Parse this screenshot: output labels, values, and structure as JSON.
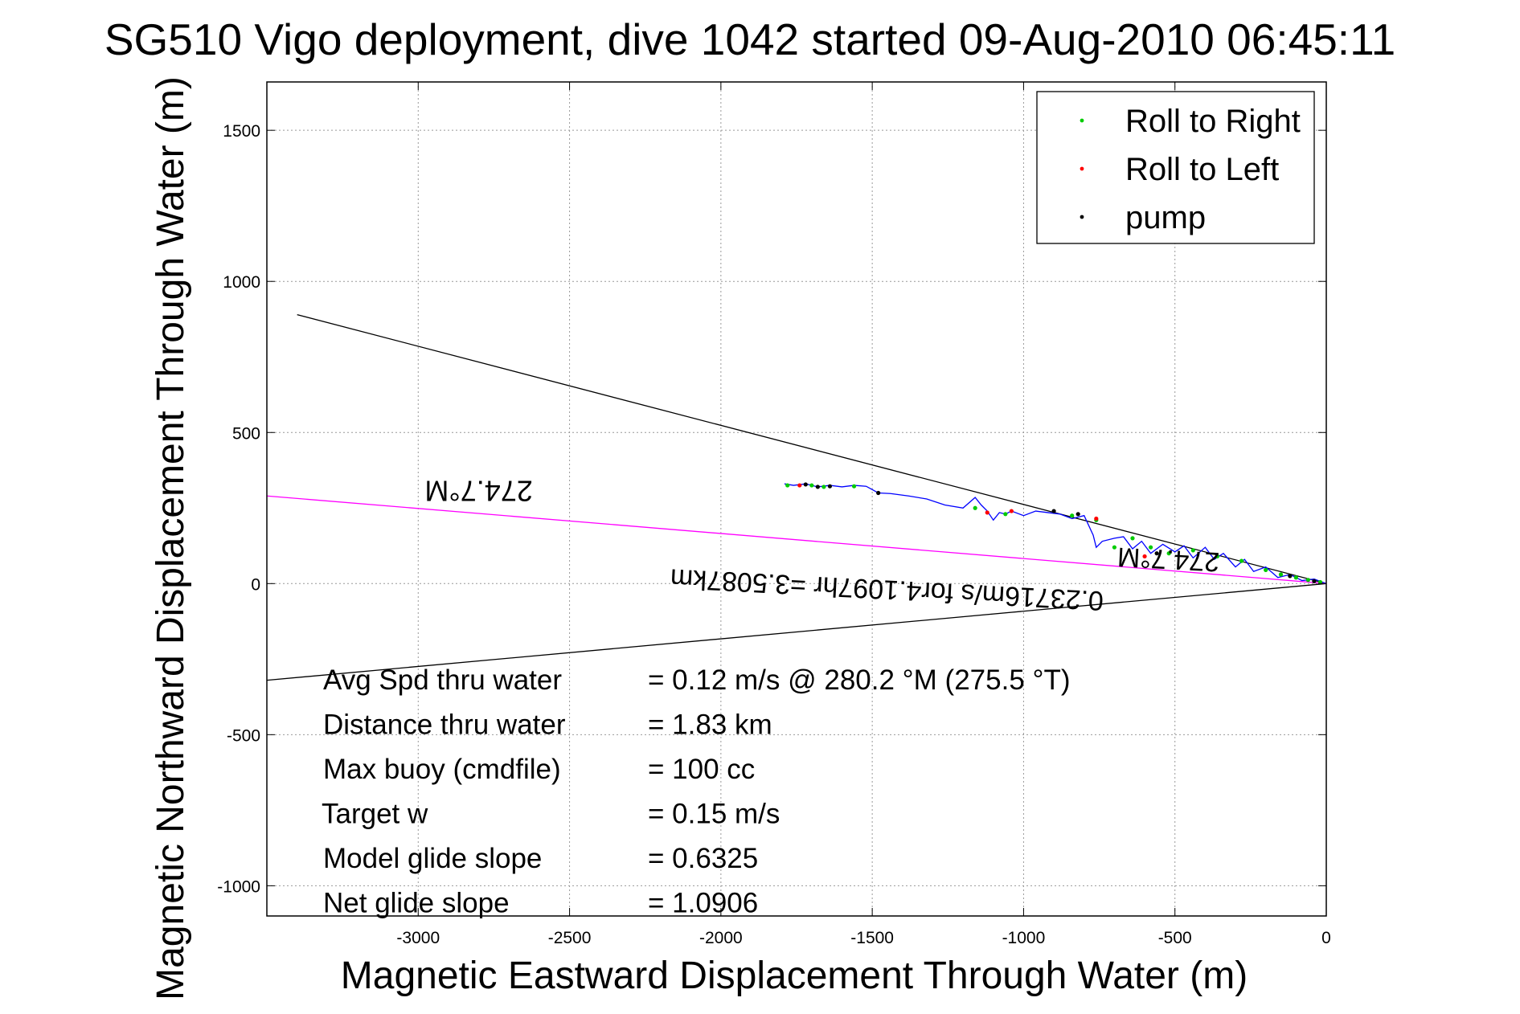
{
  "chart_data": {
    "type": "line",
    "title": "SG510 Vigo deployment, dive 1042 started 09-Aug-2010 06:45:11",
    "xlabel": "Magnetic Eastward Displacement Through Water (m)",
    "ylabel": "Magnetic Northward Displacement Through Water (m)",
    "xlim": [
      -3500,
      0
    ],
    "ylim": [
      -1100,
      1660
    ],
    "x_ticks": [
      -3000,
      -2500,
      -2000,
      -1500,
      -1000,
      -500,
      0
    ],
    "y_ticks": [
      -1000,
      -500,
      0,
      500,
      1000,
      1500
    ],
    "grid": true,
    "legend_position": "top-right",
    "legend": [
      {
        "label": "Roll to Right",
        "color": "#00cc00"
      },
      {
        "label": "Roll to Left",
        "color": "#ff0000"
      },
      {
        "label": "pump",
        "color": "#000000"
      }
    ],
    "lines": [
      {
        "name": "upper-bound",
        "color": "#000000",
        "x": [
          0,
          -3400
        ],
        "y": [
          0,
          890
        ]
      },
      {
        "name": "lower-bound",
        "color": "#000000",
        "x": [
          0,
          -3500
        ],
        "y": [
          0,
          -320
        ]
      },
      {
        "name": "heading-line",
        "color": "#ff00ff",
        "x": [
          0,
          -3500
        ],
        "y": [
          0,
          290
        ]
      }
    ],
    "track": {
      "color": "#0000ff",
      "x": [
        -1790,
        -1760,
        -1720,
        -1680,
        -1640,
        -1600,
        -1560,
        -1520,
        -1480,
        -1440,
        -1380,
        -1320,
        -1260,
        -1200,
        -1160,
        -1140,
        -1120,
        -1100,
        -1080,
        -1060,
        -1040,
        -1000,
        -960,
        -920,
        -880,
        -840,
        -800,
        -770,
        -760,
        -740,
        -700,
        -670,
        -640,
        -610,
        -580,
        -540,
        -500,
        -470,
        -440,
        -400,
        -370,
        -340,
        -300,
        -270,
        -240,
        -200,
        -160,
        -120,
        -80,
        -40,
        0
      ],
      "y": [
        330,
        325,
        330,
        320,
        325,
        320,
        325,
        322,
        300,
        298,
        290,
        280,
        260,
        250,
        285,
        260,
        240,
        210,
        235,
        230,
        240,
        225,
        240,
        235,
        230,
        215,
        225,
        160,
        120,
        140,
        150,
        155,
        115,
        140,
        100,
        130,
        105,
        125,
        85,
        120,
        80,
        100,
        55,
        80,
        40,
        55,
        20,
        30,
        10,
        15,
        0
      ]
    },
    "roll_right_points": {
      "x": [
        -1780,
        -1700,
        -1660,
        -1560,
        -1160,
        -1060,
        -840,
        -760,
        -700,
        -640,
        -580,
        -520,
        -440,
        -360,
        -280,
        -200,
        -150,
        -100,
        -60,
        -20
      ],
      "y": [
        325,
        325,
        320,
        322,
        250,
        230,
        225,
        210,
        120,
        150,
        120,
        100,
        110,
        90,
        75,
        45,
        30,
        20,
        12,
        5
      ]
    },
    "roll_left_points": {
      "x": [
        -1740,
        -1120,
        -1040,
        -760,
        -600
      ],
      "y": [
        325,
        235,
        240,
        215,
        90
      ]
    },
    "pump_points": {
      "x": [
        -1720,
        -1680,
        -1640,
        -1480,
        -900,
        -820,
        -560,
        -120,
        -40
      ],
      "y": [
        328,
        320,
        322,
        300,
        240,
        230,
        100,
        25,
        8
      ]
    },
    "rotated_labels": [
      {
        "text": "274.7°M",
        "x": -2800,
        "y": 340,
        "angle": 180
      },
      {
        "text": "274.7°M",
        "x": -520,
        "y": 110,
        "angle": 183
      },
      {
        "text": "0.23716m/s for4.1097hr =3.5087km",
        "x": -1450,
        "y": 10,
        "angle": 183
      }
    ],
    "annotations": [
      {
        "label": "Avg Spd thru water",
        "value": "=  0.12 m/s @ 280.2 °M (275.5 °T)"
      },
      {
        "label": "Distance thru water",
        "value": "=  1.83 km"
      },
      {
        "label": "Max buoy (cmdfile)",
        "value": "= 100 cc"
      },
      {
        "label": "Target w",
        "value": "= 0.15 m/s"
      },
      {
        "label": "Model glide slope",
        "value": "= 0.6325"
      },
      {
        "label": "Net glide slope",
        "value": "= 1.0906"
      }
    ]
  }
}
